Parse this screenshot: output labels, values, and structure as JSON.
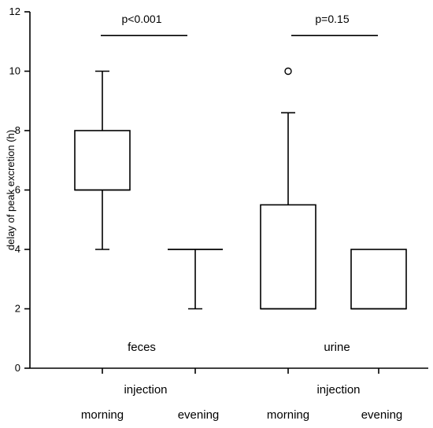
{
  "chart_data": {
    "type": "box",
    "ylabel": "delay of peak excretion (h)",
    "ylim": [
      0,
      12
    ],
    "yticks": [
      "0",
      "2",
      "4",
      "6",
      "8",
      "10",
      "12"
    ],
    "xgroups": [
      {
        "name": "feces",
        "injection_label": "injection",
        "categories": [
          "morning",
          "evening"
        ]
      },
      {
        "name": "urine",
        "injection_label": "injection",
        "categories": [
          "morning",
          "evening"
        ]
      }
    ],
    "boxes": [
      {
        "group": "feces",
        "category": "morning",
        "whisker_low": 4,
        "q1": 6,
        "median": 6,
        "q3": 8,
        "whisker_high": 10,
        "outliers": []
      },
      {
        "group": "feces",
        "category": "evening",
        "whisker_low": 2,
        "q1": 4,
        "median": 4,
        "q3": 4,
        "whisker_high": 4,
        "outliers": []
      },
      {
        "group": "urine",
        "category": "morning",
        "whisker_low": 2,
        "q1": 2,
        "median": 2,
        "q3": 5.5,
        "whisker_high": 8.6,
        "outliers": [
          10
        ]
      },
      {
        "group": "urine",
        "category": "evening",
        "whisker_low": 2,
        "q1": 2,
        "median": 2,
        "q3": 4,
        "whisker_high": 4,
        "outliers": []
      }
    ],
    "annotations": [
      {
        "group": "feces",
        "text": "p<0.001",
        "y": 11.2
      },
      {
        "group": "urine",
        "text": "p=0.15",
        "y": 11.2
      }
    ]
  }
}
